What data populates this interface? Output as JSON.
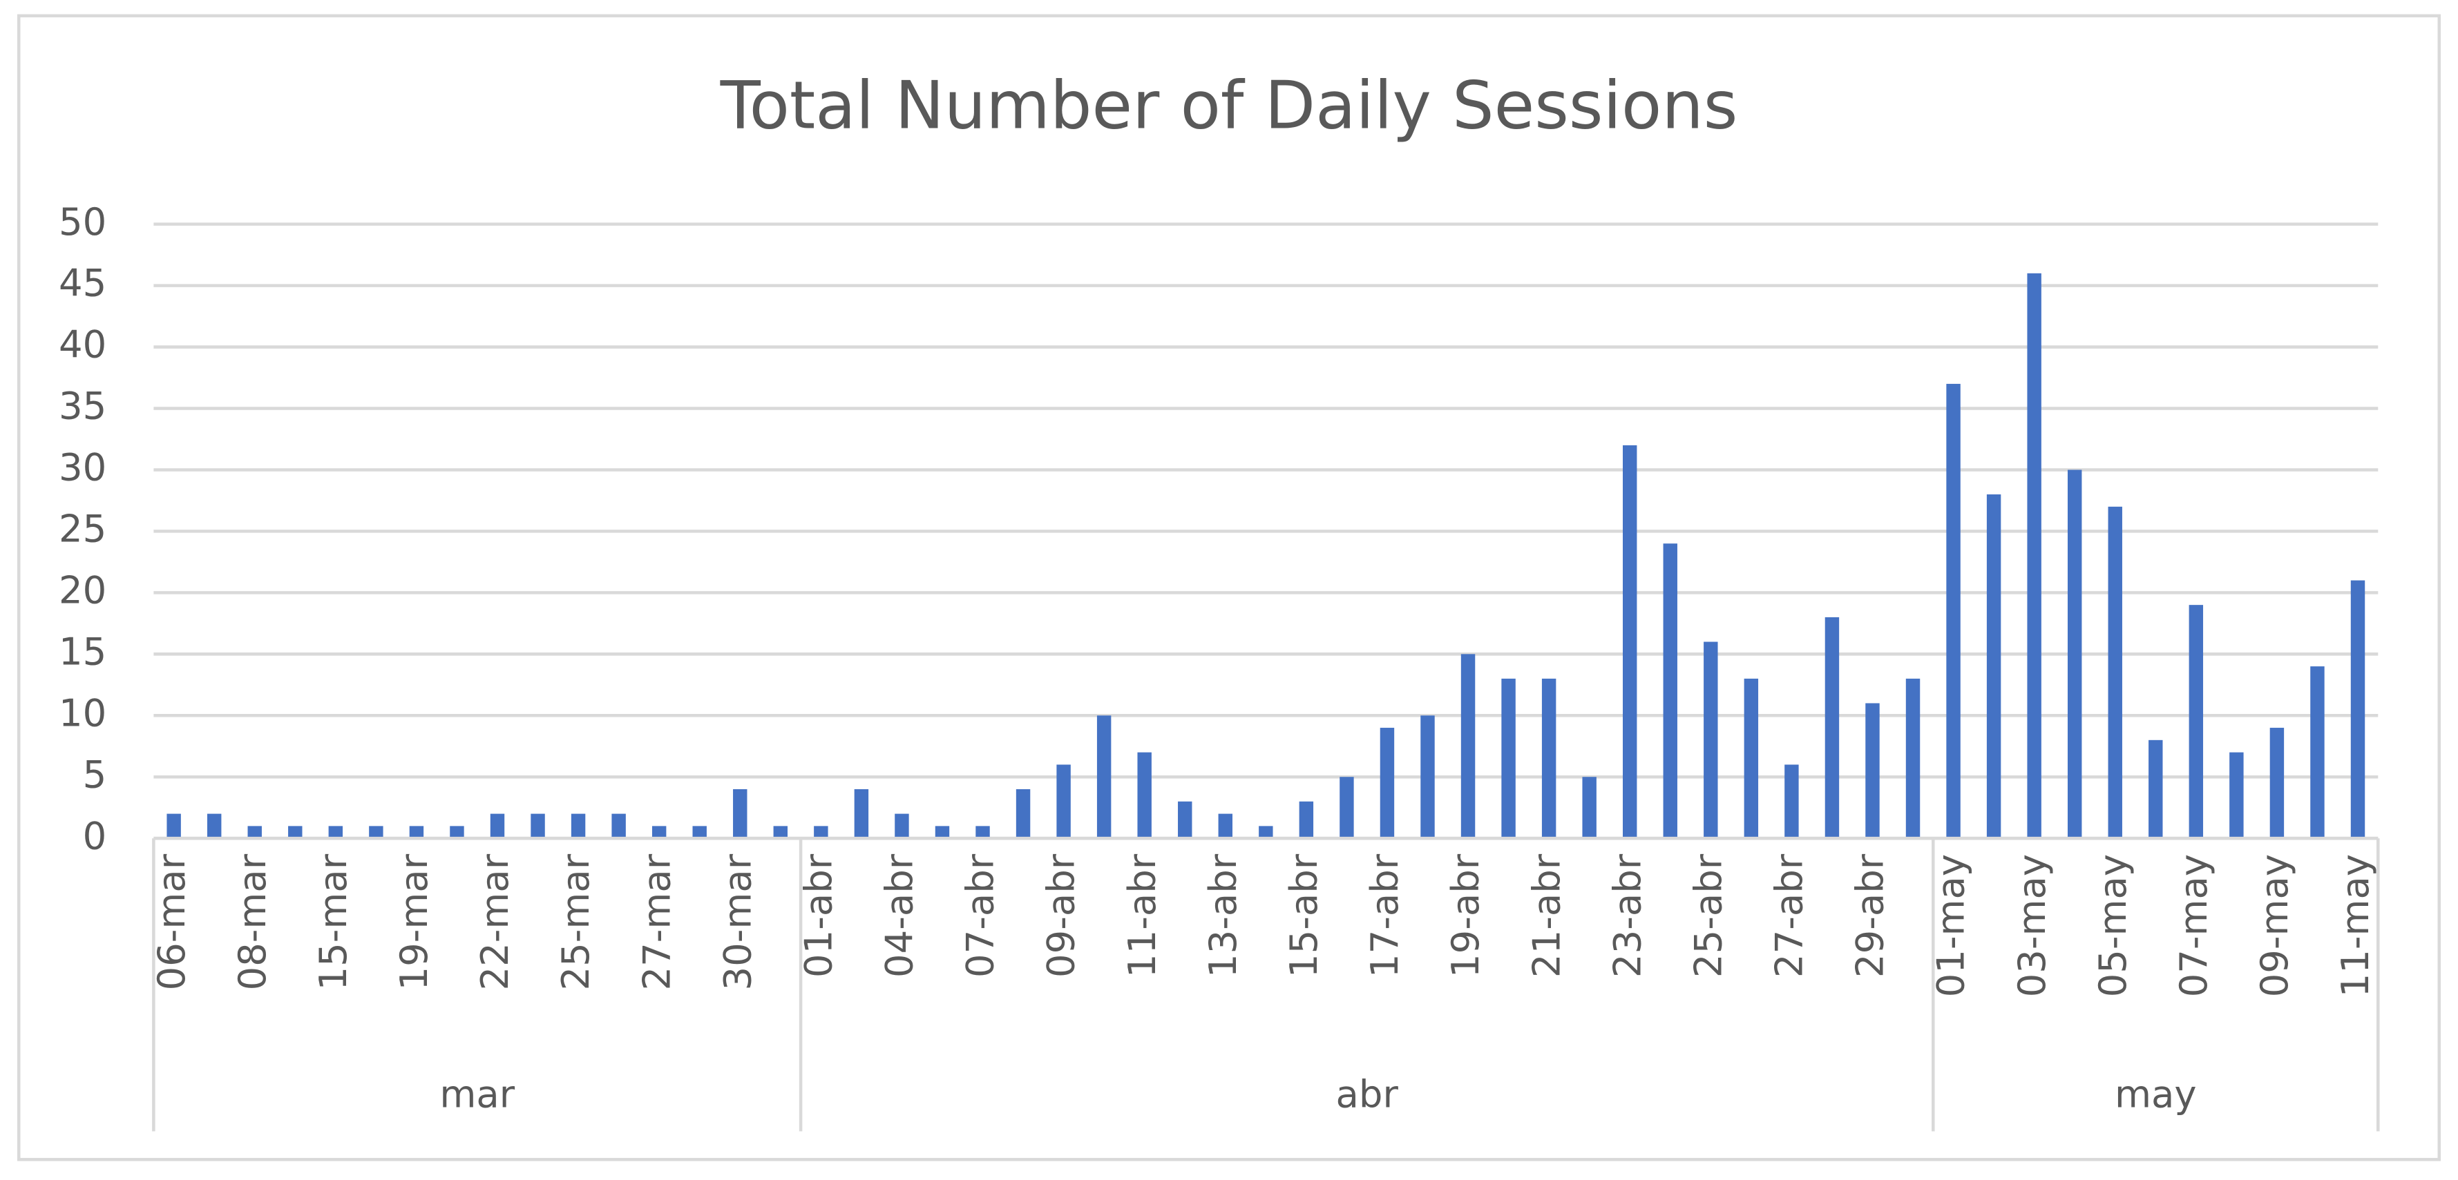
{
  "chart_data": {
    "type": "bar",
    "title": "Total Number of Daily Sessions",
    "color": "#4472c4",
    "ylim": [
      0,
      50
    ],
    "yticks": [
      0,
      5,
      10,
      15,
      20,
      25,
      30,
      35,
      40,
      45,
      50
    ],
    "grid": true,
    "groups": [
      {
        "label": "mar",
        "categories": [
          "06-mar",
          null,
          "08-mar",
          null,
          "15-mar",
          null,
          "19-mar",
          null,
          "22-mar",
          null,
          "25-mar",
          null,
          "27-mar",
          null,
          "30-mar",
          null
        ],
        "values": [
          2,
          2,
          1,
          1,
          1,
          1,
          1,
          1,
          2,
          2,
          2,
          2,
          1,
          1,
          4,
          1
        ]
      },
      {
        "label": "abr",
        "categories": [
          "01-abr",
          null,
          "04-abr",
          null,
          "07-abr",
          null,
          "09-abr",
          null,
          "11-abr",
          null,
          "13-abr",
          null,
          "15-abr",
          null,
          "17-abr",
          null,
          "19-abr",
          null,
          "21-abr",
          null,
          "23-abr",
          null,
          "25-abr",
          null,
          "27-abr",
          null,
          "29-abr",
          null
        ],
        "values": [
          1,
          4,
          2,
          1,
          1,
          4,
          6,
          10,
          7,
          3,
          2,
          1,
          3,
          5,
          9,
          10,
          15,
          13,
          13,
          5,
          32,
          24,
          16,
          13,
          6,
          18,
          11,
          13
        ]
      },
      {
        "label": "may",
        "categories": [
          "01-may",
          null,
          "03-may",
          null,
          "05-may",
          null,
          "07-may",
          null,
          "09-may",
          null,
          "11-may"
        ],
        "values": [
          37,
          28,
          46,
          30,
          27,
          8,
          19,
          7,
          9,
          14,
          21
        ]
      }
    ]
  }
}
